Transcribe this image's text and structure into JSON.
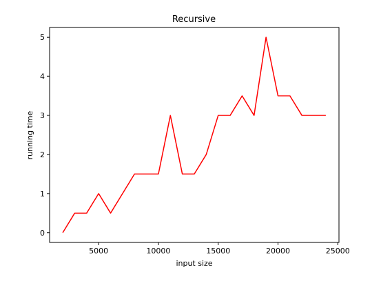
{
  "chart_data": {
    "type": "line",
    "title": "Recursive",
    "xlabel": "input size",
    "ylabel": "running time",
    "x": [
      2000,
      3000,
      4000,
      5000,
      6000,
      7000,
      8000,
      9000,
      10000,
      11000,
      12000,
      13000,
      14000,
      15000,
      16000,
      17000,
      18000,
      19000,
      20000,
      21000,
      22000,
      23000,
      24000
    ],
    "series": [
      {
        "values": [
          0,
          0.5,
          0.5,
          1,
          0.5,
          1,
          1.5,
          1.5,
          1.5,
          3,
          1.5,
          1.5,
          2,
          3,
          3,
          3.5,
          3,
          5,
          3.5,
          3.5,
          3,
          3,
          3
        ],
        "color": "#ff0000"
      }
    ],
    "xlim": [
      900,
      25100
    ],
    "ylim": [
      -0.25,
      5.25
    ],
    "xticks": [
      "5000",
      "10000",
      "15000",
      "20000",
      "25000"
    ],
    "yticks": [
      "0",
      "1",
      "2",
      "3",
      "4",
      "5"
    ],
    "grid": false
  }
}
